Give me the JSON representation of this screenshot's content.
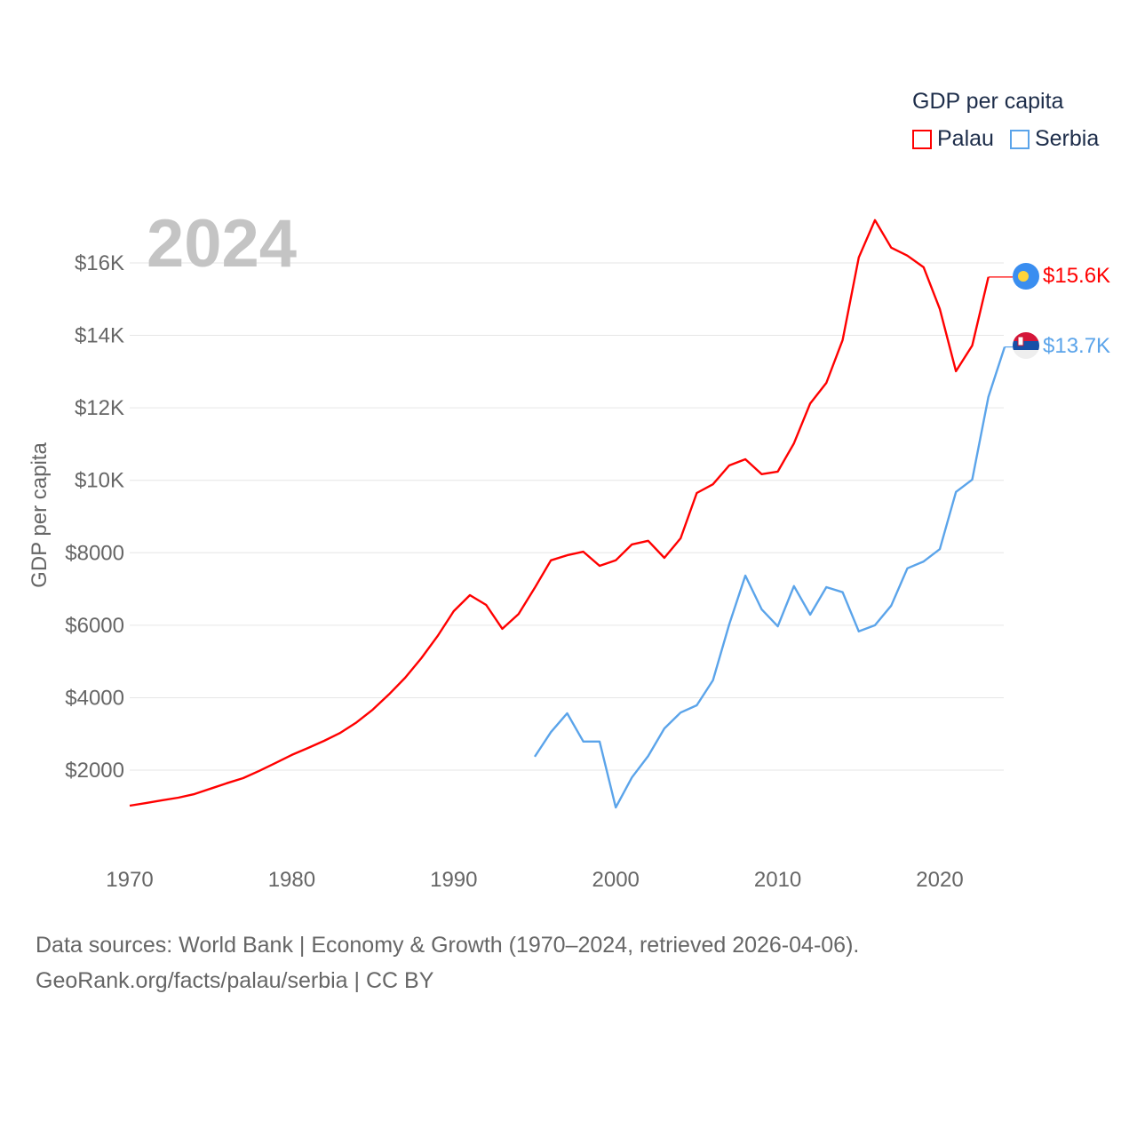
{
  "chart_data": {
    "type": "line",
    "title": "2024",
    "xlabel": "",
    "ylabel": "GDP per capita",
    "xlim": [
      1970,
      2024
    ],
    "ylim": [
      0,
      17500
    ],
    "x_ticks": [
      1970,
      1980,
      1990,
      2000,
      2010,
      2020
    ],
    "x_tick_labels": [
      "1970",
      "1980",
      "1990",
      "2000",
      "2010",
      "2020"
    ],
    "y_ticks": [
      2000,
      4000,
      6000,
      8000,
      10000,
      12000,
      14000,
      16000
    ],
    "y_tick_labels": [
      "$2000",
      "$4000",
      "$6000",
      "$8000",
      "$10K",
      "$12K",
      "$14K",
      "$16K"
    ],
    "grid": true,
    "legend_title": "GDP per capita",
    "legend_placement": "top-right",
    "series": [
      {
        "name": "Palau",
        "color": "#ff0000",
        "end_label": "$15.6K",
        "x": [
          1970,
          1971,
          1972,
          1973,
          1974,
          1975,
          1976,
          1977,
          1978,
          1979,
          1980,
          1981,
          1982,
          1983,
          1984,
          1985,
          1986,
          1987,
          1988,
          1989,
          1990,
          1991,
          1992,
          1993,
          1994,
          1995,
          1996,
          1997,
          1998,
          1999,
          2000,
          2001,
          2002,
          2003,
          2004,
          2005,
          2006,
          2007,
          2008,
          2009,
          2010,
          2011,
          2012,
          2013,
          2014,
          2015,
          2016,
          2017,
          2018,
          2019,
          2020,
          2021,
          2022,
          2023
        ],
        "values": [
          1020,
          1090,
          1170,
          1240,
          1340,
          1490,
          1640,
          1780,
          1980,
          2200,
          2420,
          2610,
          2810,
          3030,
          3320,
          3670,
          4090,
          4550,
          5090,
          5700,
          6390,
          6830,
          6560,
          5900,
          6310,
          7030,
          7790,
          7930,
          8030,
          7640,
          7790,
          8230,
          8330,
          7860,
          8400,
          9650,
          9890,
          10410,
          10580,
          10170,
          10240,
          11020,
          12120,
          12690,
          13870,
          16150,
          17180,
          16420,
          16200,
          15880,
          14730,
          13010,
          13720,
          15610
        ]
      },
      {
        "name": "Serbia",
        "color": "#5ba4ea",
        "end_label": "$13.7K",
        "x": [
          1995,
          1996,
          1997,
          1998,
          1999,
          2000,
          2001,
          2002,
          2003,
          2004,
          2005,
          2006,
          2007,
          2008,
          2009,
          2010,
          2011,
          2012,
          2013,
          2014,
          2015,
          2016,
          2017,
          2018,
          2019,
          2020,
          2021,
          2022,
          2023,
          2024
        ],
        "values": [
          2370,
          3050,
          3570,
          2790,
          2790,
          970,
          1800,
          2390,
          3150,
          3590,
          3790,
          4480,
          6020,
          7370,
          6440,
          5970,
          7080,
          6290,
          7050,
          6910,
          5830,
          6000,
          6540,
          7570,
          7760,
          8100,
          9680,
          10020,
          12300,
          13680
        ]
      }
    ]
  },
  "footer": {
    "line1": "Data sources: World Bank | Economy & Growth (1970–2024, retrieved 2026-04-06).",
    "line2": "GeoRank.org/facts/palau/serbia | CC BY"
  }
}
